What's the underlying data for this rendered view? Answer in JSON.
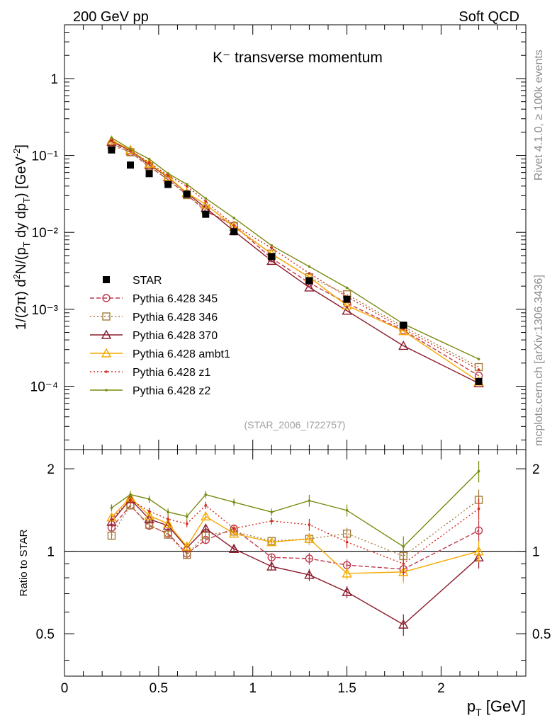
{
  "header": {
    "left": "200 GeV pp",
    "right": "Soft QCD"
  },
  "side_labels": {
    "rivet": "Rivet 4.1.0, ≥ 100k events",
    "mcplots": "mcplots.cern.ch [arXiv:1306.3436]"
  },
  "chart_data": {
    "type": "scatter",
    "title": "K⁻ transverse momentum",
    "analysis_tag": "(STAR_2006_I722757)",
    "xlabel": "p_T [GeV]",
    "ylabel": "1/(2π) d²N/(p_T dy dp_T) [GeV⁻²]",
    "ratio_ylabel": "Ratio to STAR",
    "xlim": [
      0,
      2.45
    ],
    "ylim": [
      1.5e-05,
      5
    ],
    "ratio_ylim": [
      0.35,
      2.35
    ],
    "yscale": "log",
    "ratio_yscale": "log",
    "x_ticks": [
      "0",
      "0.5",
      "1",
      "1.5",
      "2"
    ],
    "y_ticks": [
      "1",
      "10⁻¹",
      "10⁻²",
      "10⁻³",
      "10⁻⁴"
    ],
    "ratio_ticks": [
      "0.5",
      "1",
      "2"
    ],
    "x": [
      0.25,
      0.35,
      0.45,
      0.55,
      0.65,
      0.75,
      0.9,
      1.1,
      1.3,
      1.5,
      1.8,
      2.2
    ],
    "data": {
      "name": "STAR",
      "values": [
        0.118,
        0.075,
        0.058,
        0.042,
        0.0315,
        0.0172,
        0.0102,
        0.00485,
        0.00235,
        0.00135,
        0.00062,
        0.000115
      ]
    },
    "series": [
      {
        "name": "Pythia 6.428 345",
        "color": "#c0394b",
        "dash": "6,3",
        "marker": "circle",
        "ratio": [
          1.22,
          1.47,
          1.24,
          1.16,
          0.98,
          1.1,
          1.21,
          0.95,
          0.94,
          0.89,
          0.86,
          1.19
        ]
      },
      {
        "name": "Pythia 6.428 346",
        "color": "#a67c3a",
        "dash": "2,3",
        "marker": "square",
        "ratio": [
          1.14,
          1.47,
          1.25,
          1.15,
          0.97,
          1.15,
          1.18,
          1.09,
          1.11,
          1.16,
          0.96,
          1.54
        ]
      },
      {
        "name": "Pythia 6.428 370",
        "color": "#8b1a2b",
        "dash": "",
        "marker": "triangle",
        "ratio": [
          1.28,
          1.55,
          1.31,
          1.24,
          1.03,
          1.21,
          1.02,
          0.88,
          0.82,
          0.71,
          0.54,
          0.95
        ]
      },
      {
        "name": "Pythia 6.428 ambt1",
        "color": "#f5a800",
        "dash": "",
        "marker": "triangle",
        "ratio": [
          1.33,
          1.57,
          1.35,
          1.26,
          1.04,
          1.34,
          1.16,
          1.08,
          1.11,
          0.83,
          0.84,
          1.0
        ]
      },
      {
        "name": "Pythia 6.428 z1",
        "color": "#d42a1b",
        "dash": "2,3",
        "marker": "dot",
        "ratio": [
          1.31,
          1.54,
          1.4,
          1.31,
          1.26,
          1.47,
          1.21,
          1.29,
          1.25,
          1.08,
          0.9,
          1.43
        ]
      },
      {
        "name": "Pythia 6.428 z2",
        "color": "#7b8a11",
        "dash": "",
        "marker": "dot",
        "ratio": [
          1.44,
          1.61,
          1.55,
          1.39,
          1.34,
          1.61,
          1.51,
          1.39,
          1.53,
          1.41,
          1.04,
          1.96
        ]
      }
    ]
  }
}
